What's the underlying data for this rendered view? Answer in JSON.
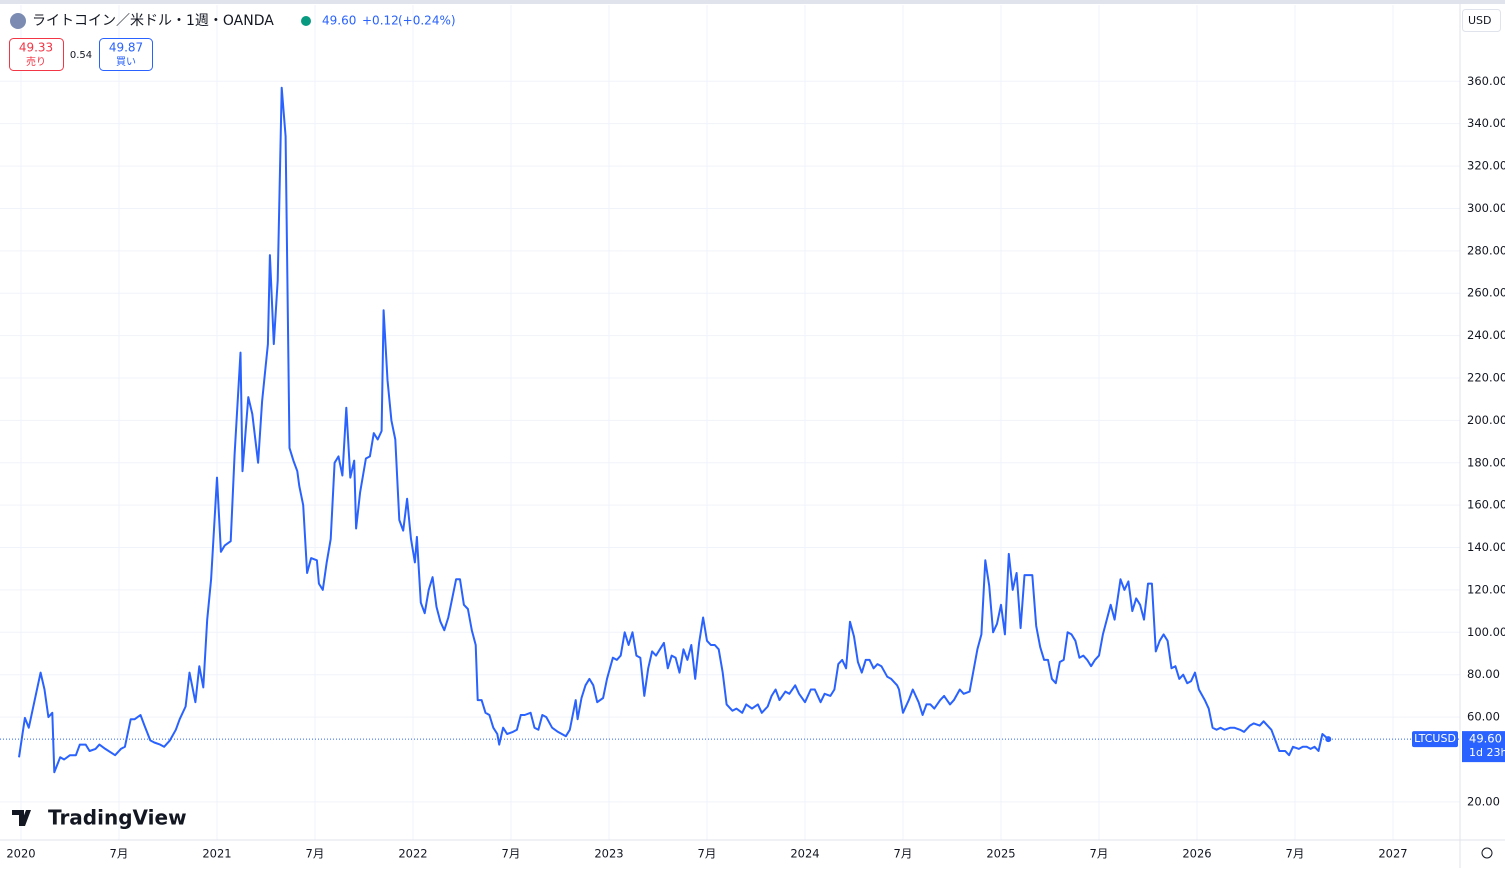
{
  "header": {
    "title": "ライトコイン／米ドル・1週・OANDA",
    "price": "49.60",
    "change": "+0.12",
    "change_pct": "(+0.24%)",
    "sell": "49.33",
    "sell_label": "売り",
    "spread": "0.54",
    "buy": "49.87",
    "buy_label": "買い",
    "currency": "USD",
    "brand": "TradingView"
  },
  "chart_data": {
    "type": "line",
    "x": [
      2019.99,
      2020.02,
      2020.04,
      2020.07,
      2020.1,
      2020.12,
      2020.14,
      2020.16,
      2020.17,
      2020.2,
      2020.22,
      2020.25,
      2020.28,
      2020.3,
      2020.33,
      2020.35,
      2020.38,
      2020.4,
      2020.43,
      2020.48,
      2020.51,
      2020.53,
      2020.56,
      2020.58,
      2020.61,
      2020.63,
      2020.66,
      2020.68,
      2020.71,
      2020.73,
      2020.76,
      2020.79,
      2020.81,
      2020.84,
      2020.86,
      2020.89,
      2020.91,
      2020.93,
      2020.95,
      2020.97,
      2021.0,
      2021.02,
      2021.04,
      2021.07,
      2021.09,
      2021.12,
      2021.13,
      2021.16,
      2021.18,
      2021.21,
      2021.23,
      2021.26,
      2021.27,
      2021.29,
      2021.31,
      2021.33,
      2021.35,
      2021.37,
      2021.39,
      2021.41,
      2021.42,
      2021.44,
      2021.46,
      2021.48,
      2021.51,
      2021.52,
      2021.54,
      2021.56,
      2021.58,
      2021.6,
      2021.62,
      2021.64,
      2021.66,
      2021.68,
      2021.7,
      2021.71,
      2021.73,
      2021.76,
      2021.78,
      2021.8,
      2021.82,
      2021.84,
      2021.85,
      2021.87,
      2021.89,
      2021.91,
      2021.93,
      2021.95,
      2021.97,
      2021.99,
      2022.01,
      2022.02,
      2022.04,
      2022.06,
      2022.08,
      2022.1,
      2022.12,
      2022.14,
      2022.16,
      2022.18,
      2022.2,
      2022.22,
      2022.24,
      2022.26,
      2022.28,
      2022.3,
      2022.32,
      2022.33,
      2022.35,
      2022.37,
      2022.39,
      2022.41,
      2022.43,
      2022.44,
      2022.46,
      2022.48,
      2022.51,
      2022.53,
      2022.55,
      2022.57,
      2022.6,
      2022.62,
      2022.64,
      2022.66,
      2022.68,
      2022.71,
      2022.74,
      2022.78,
      2022.8,
      2022.83,
      2022.84,
      2022.86,
      2022.88,
      2022.9,
      2022.92,
      2022.94,
      2022.97,
      2022.99,
      2023.02,
      2023.04,
      2023.06,
      2023.08,
      2023.1,
      2023.12,
      2023.14,
      2023.16,
      2023.18,
      2023.2,
      2023.22,
      2023.24,
      2023.26,
      2023.28,
      2023.3,
      2023.32,
      2023.34,
      2023.36,
      2023.38,
      2023.4,
      2023.42,
      2023.44,
      2023.46,
      2023.48,
      2023.5,
      2023.52,
      2023.54,
      2023.56,
      2023.58,
      2023.6,
      2023.63,
      2023.65,
      2023.68,
      2023.7,
      2023.73,
      2023.76,
      2023.78,
      2023.81,
      2023.83,
      2023.85,
      2023.87,
      2023.9,
      2023.92,
      2023.95,
      2023.97,
      2024.0,
      2024.03,
      2024.05,
      2024.08,
      2024.1,
      2024.13,
      2024.15,
      2024.17,
      2024.19,
      2024.21,
      2024.23,
      2024.25,
      2024.27,
      2024.29,
      2024.31,
      2024.33,
      2024.35,
      2024.37,
      2024.39,
      2024.42,
      2024.44,
      2024.47,
      2024.48,
      2024.5,
      2024.53,
      2024.55,
      2024.58,
      2024.6,
      2024.62,
      2024.64,
      2024.66,
      2024.69,
      2024.71,
      2024.74,
      2024.76,
      2024.79,
      2024.81,
      2024.84,
      2024.86,
      2024.88,
      2024.9,
      2024.92,
      2024.94,
      2024.96,
      2024.98,
      2025.0,
      2025.02,
      2025.04,
      2025.06,
      2025.08,
      2025.1,
      2025.12,
      2025.14,
      2025.16,
      2025.18,
      2025.2,
      2025.22,
      2025.24,
      2025.26,
      2025.28,
      2025.3,
      2025.32,
      2025.34,
      2025.36,
      2025.38,
      2025.4,
      2025.42,
      2025.44,
      2025.46,
      2025.48,
      2025.5,
      2025.52,
      2025.54,
      2025.56,
      2025.58,
      2025.61,
      2025.63,
      2025.65,
      2025.67,
      2025.69,
      2025.71,
      2025.73,
      2025.75,
      2025.77,
      2025.79,
      2025.81,
      2025.83,
      2025.85,
      2025.87,
      2025.89,
      2025.91,
      2025.93,
      2025.95,
      2025.97,
      2025.99,
      2026.01,
      2026.04,
      2026.06,
      2026.08,
      2026.1,
      2026.12,
      2026.14,
      2026.17,
      2026.19,
      2026.22,
      2026.24,
      2026.27,
      2026.29,
      2026.32,
      2026.34,
      2026.36,
      2026.38,
      2026.4,
      2026.42,
      2026.45,
      2026.47,
      2026.49,
      2026.52,
      2026.54,
      2026.56,
      2026.58,
      2026.6,
      2026.62,
      2026.64,
      2026.67
    ],
    "series": [
      {
        "name": "LTCUSD",
        "color": "#2962ff",
        "values": [
          41,
          59.6,
          55,
          68,
          81,
          73,
          60,
          62,
          34,
          41,
          40,
          42,
          42,
          47,
          47,
          44,
          45,
          47,
          45,
          42,
          45,
          46,
          59,
          59,
          61,
          56,
          49,
          48,
          47,
          46,
          49,
          54,
          59,
          65,
          81,
          67,
          84,
          74,
          106,
          125,
          173,
          138,
          141,
          143,
          184,
          232,
          176,
          211,
          203,
          180,
          209,
          236,
          278,
          236,
          266,
          357,
          334,
          187,
          181,
          176,
          169,
          160,
          128,
          135,
          134,
          123,
          120,
          133,
          144,
          180,
          183,
          174,
          206,
          173,
          181,
          149,
          166,
          182,
          183,
          194,
          191,
          195,
          252,
          219,
          200,
          191,
          153,
          148,
          163,
          144,
          133,
          145,
          114,
          109,
          120,
          126,
          112,
          105,
          101,
          107,
          116,
          125,
          125,
          113,
          111,
          101,
          94,
          68,
          68,
          62,
          61,
          55,
          52,
          47,
          55,
          52,
          53,
          54,
          61,
          61,
          62,
          55,
          54,
          61,
          60,
          55,
          53,
          51,
          54,
          68,
          59,
          69,
          75,
          78,
          75,
          67,
          69,
          78,
          88,
          87,
          89,
          100,
          94,
          100,
          89,
          88,
          70,
          83,
          91,
          89,
          92,
          95,
          83,
          89,
          88,
          81,
          92,
          87,
          94,
          78,
          95,
          107,
          96,
          94,
          94,
          92,
          81,
          66,
          63,
          64,
          62,
          66,
          64,
          66,
          62,
          65,
          70,
          73,
          68,
          72,
          71,
          75,
          71,
          67,
          73,
          73,
          67,
          71,
          70,
          73,
          85,
          87,
          83,
          105,
          98,
          86,
          81,
          87,
          87,
          83,
          85,
          84,
          79,
          78,
          75,
          73,
          62,
          68,
          73,
          67,
          61,
          66,
          66,
          64,
          68,
          70,
          66,
          68,
          73,
          71,
          72,
          82,
          92,
          99,
          134,
          122,
          100,
          104,
          113,
          99,
          137,
          120,
          128,
          102,
          127,
          127,
          127,
          103,
          93,
          87,
          87,
          78,
          76,
          86,
          87,
          100,
          99,
          96,
          88,
          89,
          87,
          84,
          87,
          89,
          99,
          106,
          113,
          106,
          125,
          120,
          124,
          110,
          116,
          113,
          106,
          123,
          123,
          91,
          96,
          99,
          96,
          83,
          84,
          78,
          80,
          76,
          77,
          81,
          73,
          68,
          64,
          55,
          54,
          55,
          54,
          55,
          55,
          54,
          53,
          56,
          57,
          56,
          58,
          56,
          54,
          49,
          44,
          44,
          42,
          46,
          45,
          46,
          46,
          45,
          46,
          44,
          52,
          49.6
        ]
      }
    ],
    "last_label": "49.60",
    "countdown": "1d 23h",
    "xlim": [
      2019.893,
      2027.342
    ],
    "xticks": [
      2020,
      {
        "value": 2020.5,
        "label": "7月"
      },
      2021,
      {
        "value": 2021.5,
        "label": "7月"
      },
      2022,
      {
        "value": 2022.5,
        "label": "7月"
      },
      2023,
      {
        "value": 2023.5,
        "label": "7月"
      },
      2024,
      {
        "value": 2024.5,
        "label": "7月"
      },
      2025,
      {
        "value": 2025.5,
        "label": "7月"
      },
      2026,
      {
        "value": 2026.5,
        "label": "7月"
      },
      2027
    ],
    "ylim": [
      2,
      396
    ],
    "yticks": [
      {
        "value": 20,
        "label": "20.00"
      },
      {
        "value": 60,
        "label": "60.00"
      },
      {
        "value": 80,
        "label": "80.00"
      },
      {
        "value": 100,
        "label": "100.00"
      },
      {
        "value": 120,
        "label": "120.00"
      },
      {
        "value": 140,
        "label": "140.00"
      },
      {
        "value": 160,
        "label": "160.00"
      },
      {
        "value": 180,
        "label": "180.00"
      },
      {
        "value": 200,
        "label": "200.00"
      },
      {
        "value": 220,
        "label": "220.00"
      },
      {
        "value": 240,
        "label": "240.00"
      },
      {
        "value": 260,
        "label": "260.00"
      },
      {
        "value": 280,
        "label": "280.00"
      },
      {
        "value": 300,
        "label": "300.00"
      },
      {
        "value": 320,
        "label": "320.00"
      },
      {
        "value": 340,
        "label": "340.00"
      },
      {
        "value": 360,
        "label": "360.00"
      }
    ],
    "grid": true
  }
}
